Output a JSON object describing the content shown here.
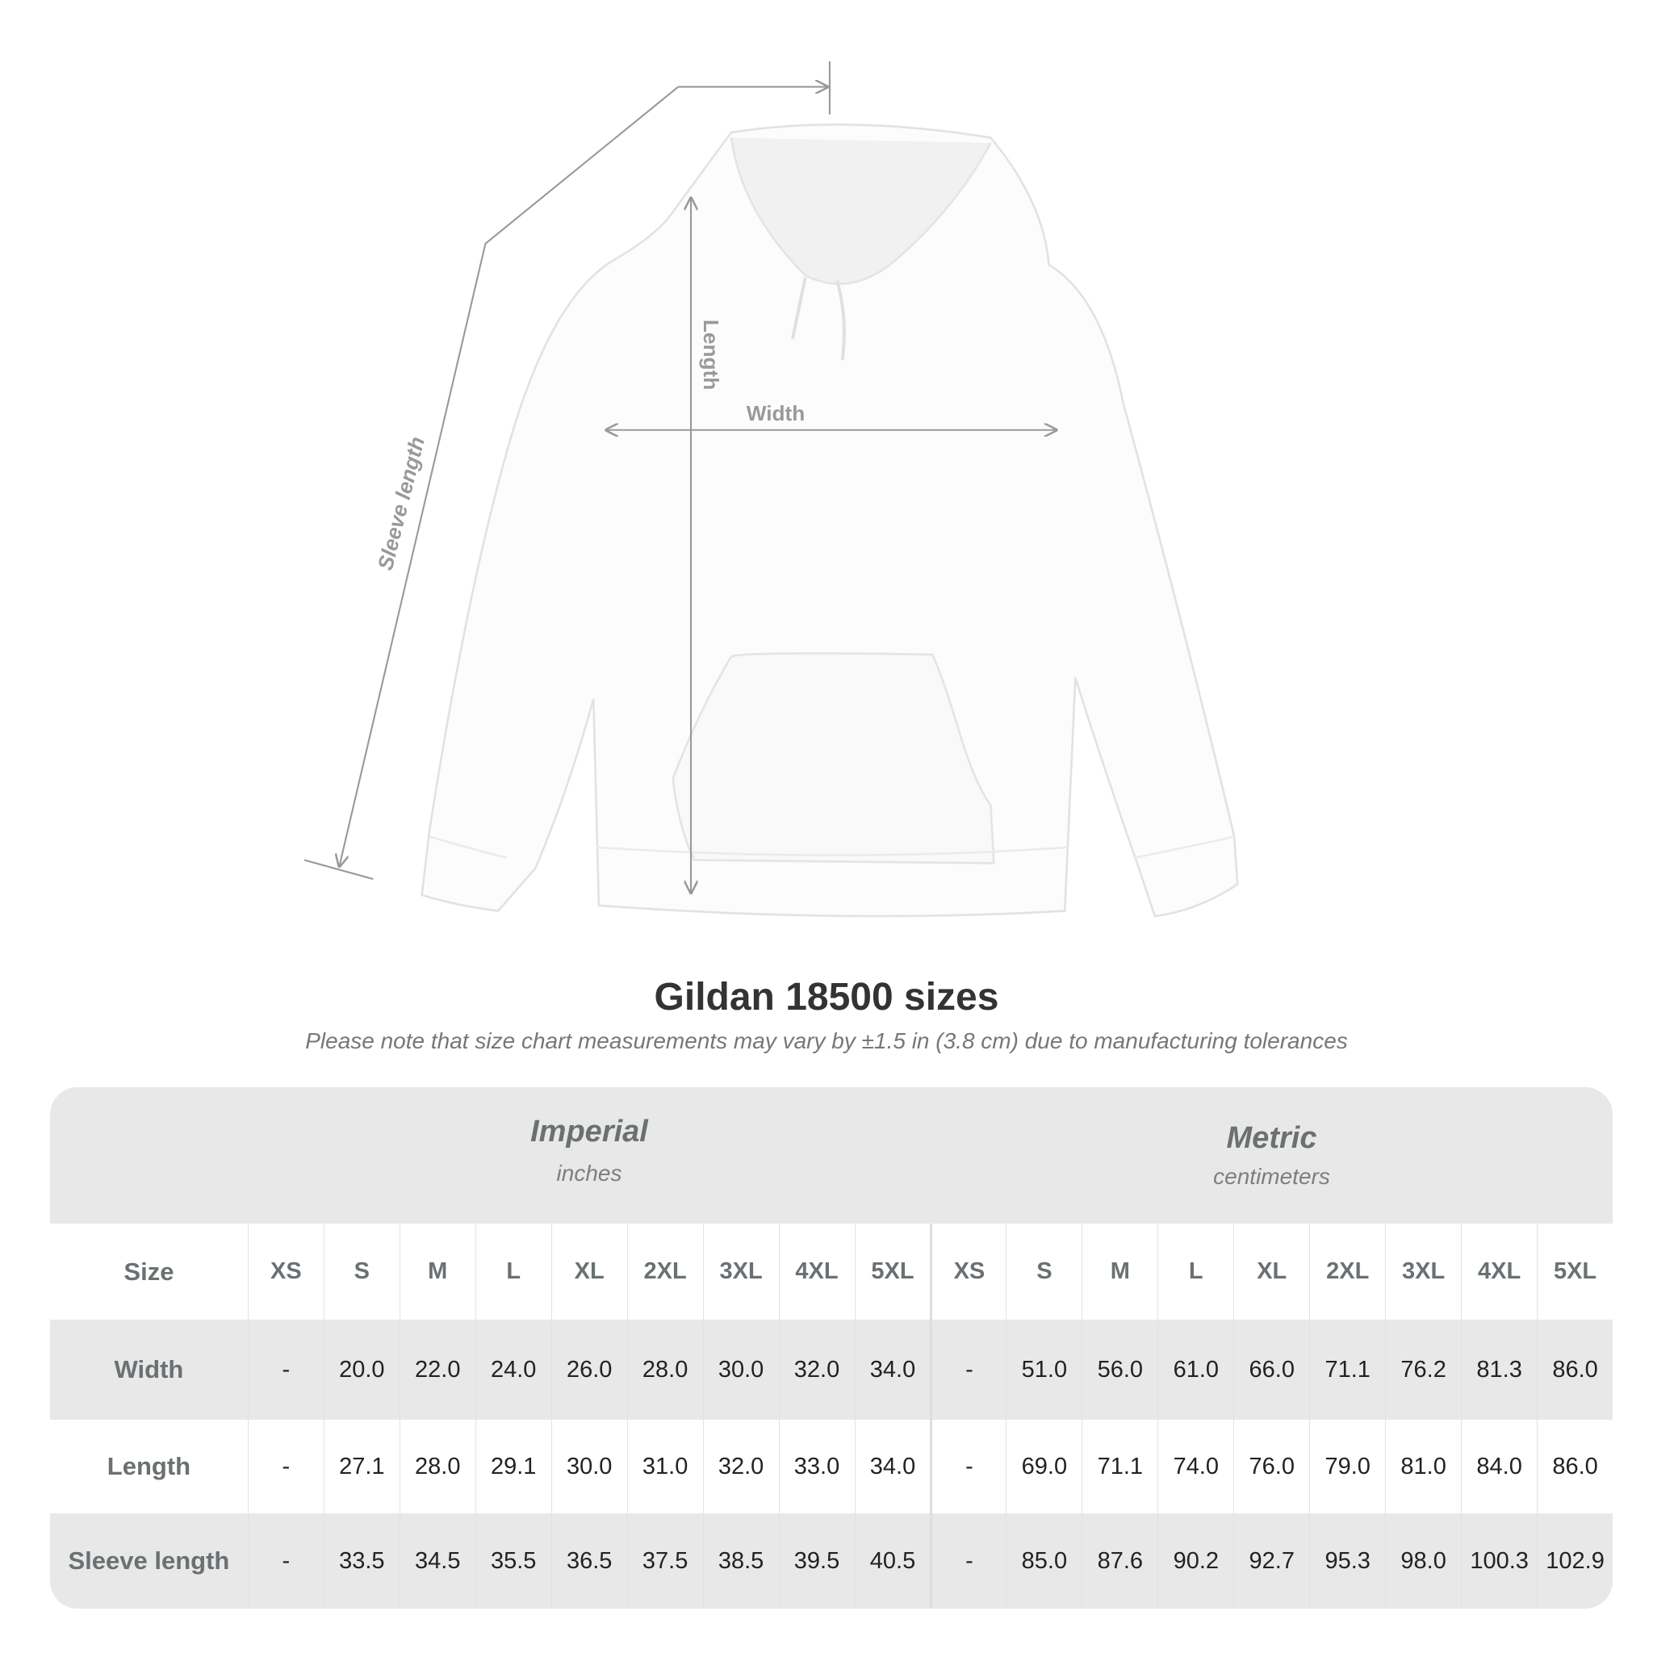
{
  "illustration": {
    "labels": {
      "sleeve": "Sleeve length",
      "length": "Length",
      "width": "Width"
    },
    "line_color": "#999999"
  },
  "title": "Gildan 18500 sizes",
  "note": "Please note that size chart measurements may vary by ±1.5 in (3.8 cm) due to manufacturing tolerances",
  "table": {
    "imperial": {
      "title": "Imperial",
      "unit": "inches"
    },
    "metric": {
      "title": "Metric",
      "unit": "centimeters"
    },
    "size_label": "Size",
    "sizes": [
      "XS",
      "S",
      "M",
      "L",
      "XL",
      "2XL",
      "3XL",
      "4XL",
      "5XL"
    ],
    "rows": [
      {
        "label": "Width",
        "imperial": [
          "-",
          "20.0",
          "22.0",
          "24.0",
          "26.0",
          "28.0",
          "30.0",
          "32.0",
          "34.0"
        ],
        "metric": [
          "-",
          "51.0",
          "56.0",
          "61.0",
          "66.0",
          "71.1",
          "76.2",
          "81.3",
          "86.0"
        ]
      },
      {
        "label": "Length",
        "imperial": [
          "-",
          "27.1",
          "28.0",
          "29.1",
          "30.0",
          "31.0",
          "32.0",
          "33.0",
          "34.0"
        ],
        "metric": [
          "-",
          "69.0",
          "71.1",
          "74.0",
          "76.0",
          "79.0",
          "81.0",
          "84.0",
          "86.0"
        ]
      },
      {
        "label": "Sleeve length",
        "imperial": [
          "-",
          "33.5",
          "34.5",
          "35.5",
          "36.5",
          "37.5",
          "38.5",
          "39.5",
          "40.5"
        ],
        "metric": [
          "-",
          "85.0",
          "87.6",
          "90.2",
          "92.7",
          "95.3",
          "98.0",
          "100.3",
          "102.9"
        ]
      }
    ],
    "band_color": "#e8e8e8"
  }
}
